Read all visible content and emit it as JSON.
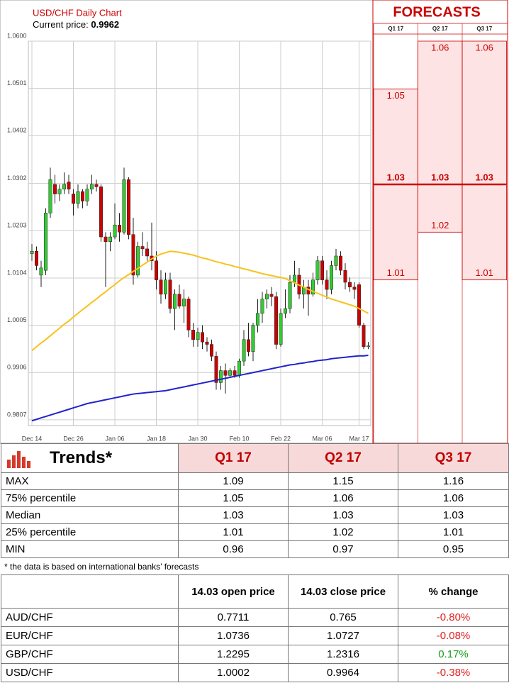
{
  "chart_data": {
    "type": "candlestick",
    "title": "USD/CHF Daily Chart",
    "price_label": "Current price:",
    "current_price": 0.9962,
    "categories": [
      "Dec 14",
      null,
      null,
      null,
      null,
      null,
      null,
      null,
      null,
      "Dec 26",
      null,
      null,
      null,
      null,
      null,
      null,
      null,
      null,
      "Jan 06",
      null,
      null,
      null,
      null,
      null,
      null,
      null,
      null,
      "Jan 18",
      null,
      null,
      null,
      null,
      null,
      null,
      null,
      null,
      "Jan 30",
      null,
      null,
      null,
      null,
      null,
      null,
      null,
      null,
      "Feb 10",
      null,
      null,
      null,
      null,
      null,
      null,
      null,
      null,
      "Feb 22",
      null,
      null,
      null,
      null,
      null,
      null,
      null,
      null,
      "Mar 06",
      null,
      null,
      null,
      null,
      null,
      null,
      null,
      "Mar 17",
      null,
      null
    ],
    "open": [
      1.0155,
      1.016,
      1.011,
      1.012,
      1.024,
      1.03,
      1.028,
      1.029,
      1.0305,
      1.028,
      1.026,
      1.0285,
      1.0265,
      1.029,
      1.03,
      1.0295,
      1.019,
      1.018,
      1.019,
      1.0215,
      1.02,
      1.031,
      1.0195,
      1.011,
      1.017,
      1.0165,
      1.015,
      1.014,
      1.01,
      1.007,
      1.01,
      1.004,
      1.007,
      1.0045,
      1.006,
      0.9995,
      0.9975,
      0.999,
      0.997,
      0.9965,
      0.994,
      0.9885,
      0.991,
      0.99,
      0.991,
      0.99,
      0.993,
      0.9975,
      0.995,
      1.0005,
      1.003,
      1.006,
      1.007,
      1.0065,
      0.9965,
      1.003,
      1.004,
      1.0095,
      1.011,
      1.007,
      1.0085,
      1.007,
      1.01,
      1.014,
      1.01,
      1.008,
      1.013,
      1.015,
      1.012,
      1.0095,
      1.0085,
      1.009,
      1.0005,
      0.996
    ],
    "high": [
      1.0175,
      1.017,
      1.014,
      1.025,
      1.0335,
      1.032,
      1.03,
      1.0325,
      1.032,
      1.029,
      1.03,
      1.029,
      1.03,
      1.032,
      1.031,
      1.03,
      1.02,
      1.02,
      1.026,
      1.024,
      1.0335,
      1.0315,
      1.023,
      1.018,
      1.02,
      1.018,
      1.022,
      1.016,
      1.012,
      1.0115,
      1.0115,
      1.008,
      1.009,
      1.008,
      1.0065,
      1.001,
      1.0,
      1.0005,
      0.998,
      0.9975,
      0.995,
      0.992,
      0.9925,
      0.9915,
      0.992,
      0.9935,
      0.9995,
      1.001,
      1.001,
      1.006,
      1.0075,
      1.008,
      1.0085,
      1.0075,
      1.004,
      1.008,
      1.011,
      1.014,
      1.0125,
      1.01,
      1.01,
      1.0115,
      1.015,
      1.015,
      1.012,
      1.014,
      1.0165,
      1.016,
      1.0135,
      1.0105,
      1.0095,
      1.0095,
      1.001,
      0.997
    ],
    "low": [
      1.014,
      1.012,
      1.0085,
      1.011,
      1.023,
      1.026,
      1.0265,
      1.028,
      1.028,
      1.0235,
      1.025,
      1.025,
      1.0255,
      1.028,
      1.0285,
      1.018,
      1.0085,
      1.016,
      1.0185,
      1.018,
      1.0195,
      1.0185,
      1.009,
      1.0105,
      1.015,
      1.014,
      1.012,
      1.008,
      1.005,
      1.006,
      1.003,
      0.9995,
      1.004,
      1.001,
      0.998,
      0.996,
      0.996,
      0.9955,
      0.995,
      0.993,
      0.987,
      0.987,
      0.9862,
      0.9895,
      0.9895,
      0.9895,
      0.992,
      0.994,
      0.993,
      0.999,
      1.001,
      1.004,
      1.0045,
      0.9955,
      0.996,
      1.002,
      1.003,
      1.0085,
      1.006,
      1.004,
      1.0025,
      1.0065,
      1.009,
      1.009,
      1.006,
      1.007,
      1.012,
      1.011,
      1.008,
      1.0075,
      1.006,
      1.0,
      0.9955,
      0.9955
    ],
    "close": [
      1.016,
      1.013,
      1.0125,
      1.024,
      1.031,
      1.028,
      1.029,
      1.03,
      1.029,
      1.026,
      1.0285,
      1.0265,
      1.029,
      1.03,
      1.0295,
      1.019,
      1.018,
      1.019,
      1.0215,
      1.02,
      1.031,
      1.0195,
      1.011,
      1.017,
      1.0165,
      1.015,
      1.014,
      1.01,
      1.007,
      1.01,
      1.004,
      1.007,
      1.0045,
      1.006,
      0.9995,
      0.9975,
      0.999,
      0.997,
      0.9965,
      0.994,
      0.9885,
      0.991,
      0.99,
      0.991,
      0.99,
      0.993,
      0.9975,
      0.995,
      1.0005,
      1.003,
      1.006,
      1.007,
      1.0065,
      0.9965,
      1.003,
      1.004,
      1.0095,
      1.011,
      1.007,
      1.0085,
      1.007,
      1.01,
      1.014,
      1.01,
      1.008,
      1.013,
      1.015,
      1.012,
      1.0095,
      1.0085,
      1.008,
      1.0005,
      0.996,
      0.9962
    ],
    "up_color": "#33cc33",
    "down_color": "#cc0000",
    "series": [
      {
        "color": "#f7c21b",
        "values": [
          0.9952,
          0.996,
          0.9968,
          0.9975,
          0.9983,
          0.9991,
          0.9999,
          1.0007,
          1.0014,
          1.0022,
          1.003,
          1.0038,
          1.0045,
          1.0053,
          1.006,
          1.0068,
          1.0075,
          1.0083,
          1.009,
          1.0098,
          1.0105,
          1.0111,
          1.0118,
          1.0124,
          1.0131,
          1.0137,
          1.0144,
          1.015,
          1.0154,
          1.0157,
          1.016,
          1.0159,
          1.0158,
          1.0156,
          1.0154,
          1.0152,
          1.0149,
          1.0146,
          1.0144,
          1.0141,
          1.0138,
          1.0136,
          1.0133,
          1.0131,
          1.0128,
          1.0126,
          1.0123,
          1.0121,
          1.0118,
          1.0116,
          1.0113,
          1.0111,
          1.0109,
          1.0107,
          1.0105,
          1.0103,
          1.0098,
          1.0094,
          1.0089,
          1.0085,
          1.008,
          1.0076,
          1.0072,
          1.0068,
          1.0064,
          1.006,
          1.0057,
          1.0054,
          1.0051,
          1.0048,
          1.0045,
          1.004,
          1.0035,
          1.003
        ]
      },
      {
        "color": "#2222cc",
        "values": [
          0.9805,
          0.9808,
          0.9811,
          0.9814,
          0.9817,
          0.982,
          0.9823,
          0.9826,
          0.9829,
          0.9832,
          0.9835,
          0.9838,
          0.9841,
          0.9843,
          0.9845,
          0.9847,
          0.9849,
          0.9851,
          0.9853,
          0.9855,
          0.9857,
          0.9859,
          0.9861,
          0.9862,
          0.9863,
          0.9864,
          0.9865,
          0.9866,
          0.9867,
          0.9868,
          0.987,
          0.9872,
          0.9874,
          0.9876,
          0.9878,
          0.988,
          0.9882,
          0.9884,
          0.9886,
          0.9888,
          0.989,
          0.9892,
          0.9894,
          0.9896,
          0.9898,
          0.99,
          0.9902,
          0.9904,
          0.9906,
          0.9908,
          0.991,
          0.9912,
          0.9914,
          0.9916,
          0.9918,
          0.992,
          0.9922,
          0.9923,
          0.9925,
          0.9926,
          0.9928,
          0.9929,
          0.9931,
          0.9932,
          0.9933,
          0.9935,
          0.9936,
          0.9937,
          0.9938,
          0.9939,
          0.994,
          0.9941,
          0.9941,
          0.9942
        ]
      }
    ],
    "ylim": [
      0.9795,
      1.06
    ],
    "yticks": [
      0.9807,
      0.9906,
      1.0005,
      1.0104,
      1.0203,
      1.0302,
      1.0402,
      1.0501,
      {
        "value": 1.06,
        "label": "1.0600"
      }
    ],
    "grid": true
  },
  "forecasts": {
    "title": "FORECASTS",
    "color": "#cc0000",
    "fill": "#fde3e3",
    "columns": [
      {
        "label": "Q1 17",
        "high": 1.05,
        "median": 1.03,
        "low": 1.01
      },
      {
        "label": "Q2 17",
        "high": 1.06,
        "median": 1.03,
        "low": 1.02
      },
      {
        "label": "Q3 17",
        "high": 1.06,
        "median": 1.03,
        "low": 1.01
      }
    ]
  },
  "trends": {
    "title": "Trends*",
    "columns": [
      "Q1 17",
      "Q2 17",
      "Q3 17"
    ],
    "rows": [
      {
        "label": "MAX",
        "values": [
          1.09,
          1.15,
          1.16
        ]
      },
      {
        "label": "75% percentile",
        "values": [
          1.05,
          1.06,
          1.06
        ]
      },
      {
        "label": "Median",
        "values": [
          1.03,
          1.03,
          1.03
        ]
      },
      {
        "label": "25% percentile",
        "values": [
          1.01,
          1.02,
          1.01
        ]
      },
      {
        "label": "MIN",
        "values": [
          0.96,
          0.97,
          0.95
        ]
      }
    ]
  },
  "footnote": "* the data is based on international banks’ forecasts",
  "price_table": {
    "columns": [
      "14.03 open price",
      "14.03 close price",
      "% change"
    ],
    "rows": [
      [
        "AUD/CHF",
        0.7711,
        0.765,
        "-0.80%"
      ],
      [
        "EUR/CHF",
        1.0736,
        1.0727,
        "-0.08%"
      ],
      [
        "GBP/CHF",
        1.2295,
        1.2316,
        "0.17%"
      ],
      [
        "USD/CHF",
        1.0002,
        0.9964,
        "-0.38%"
      ]
    ]
  }
}
